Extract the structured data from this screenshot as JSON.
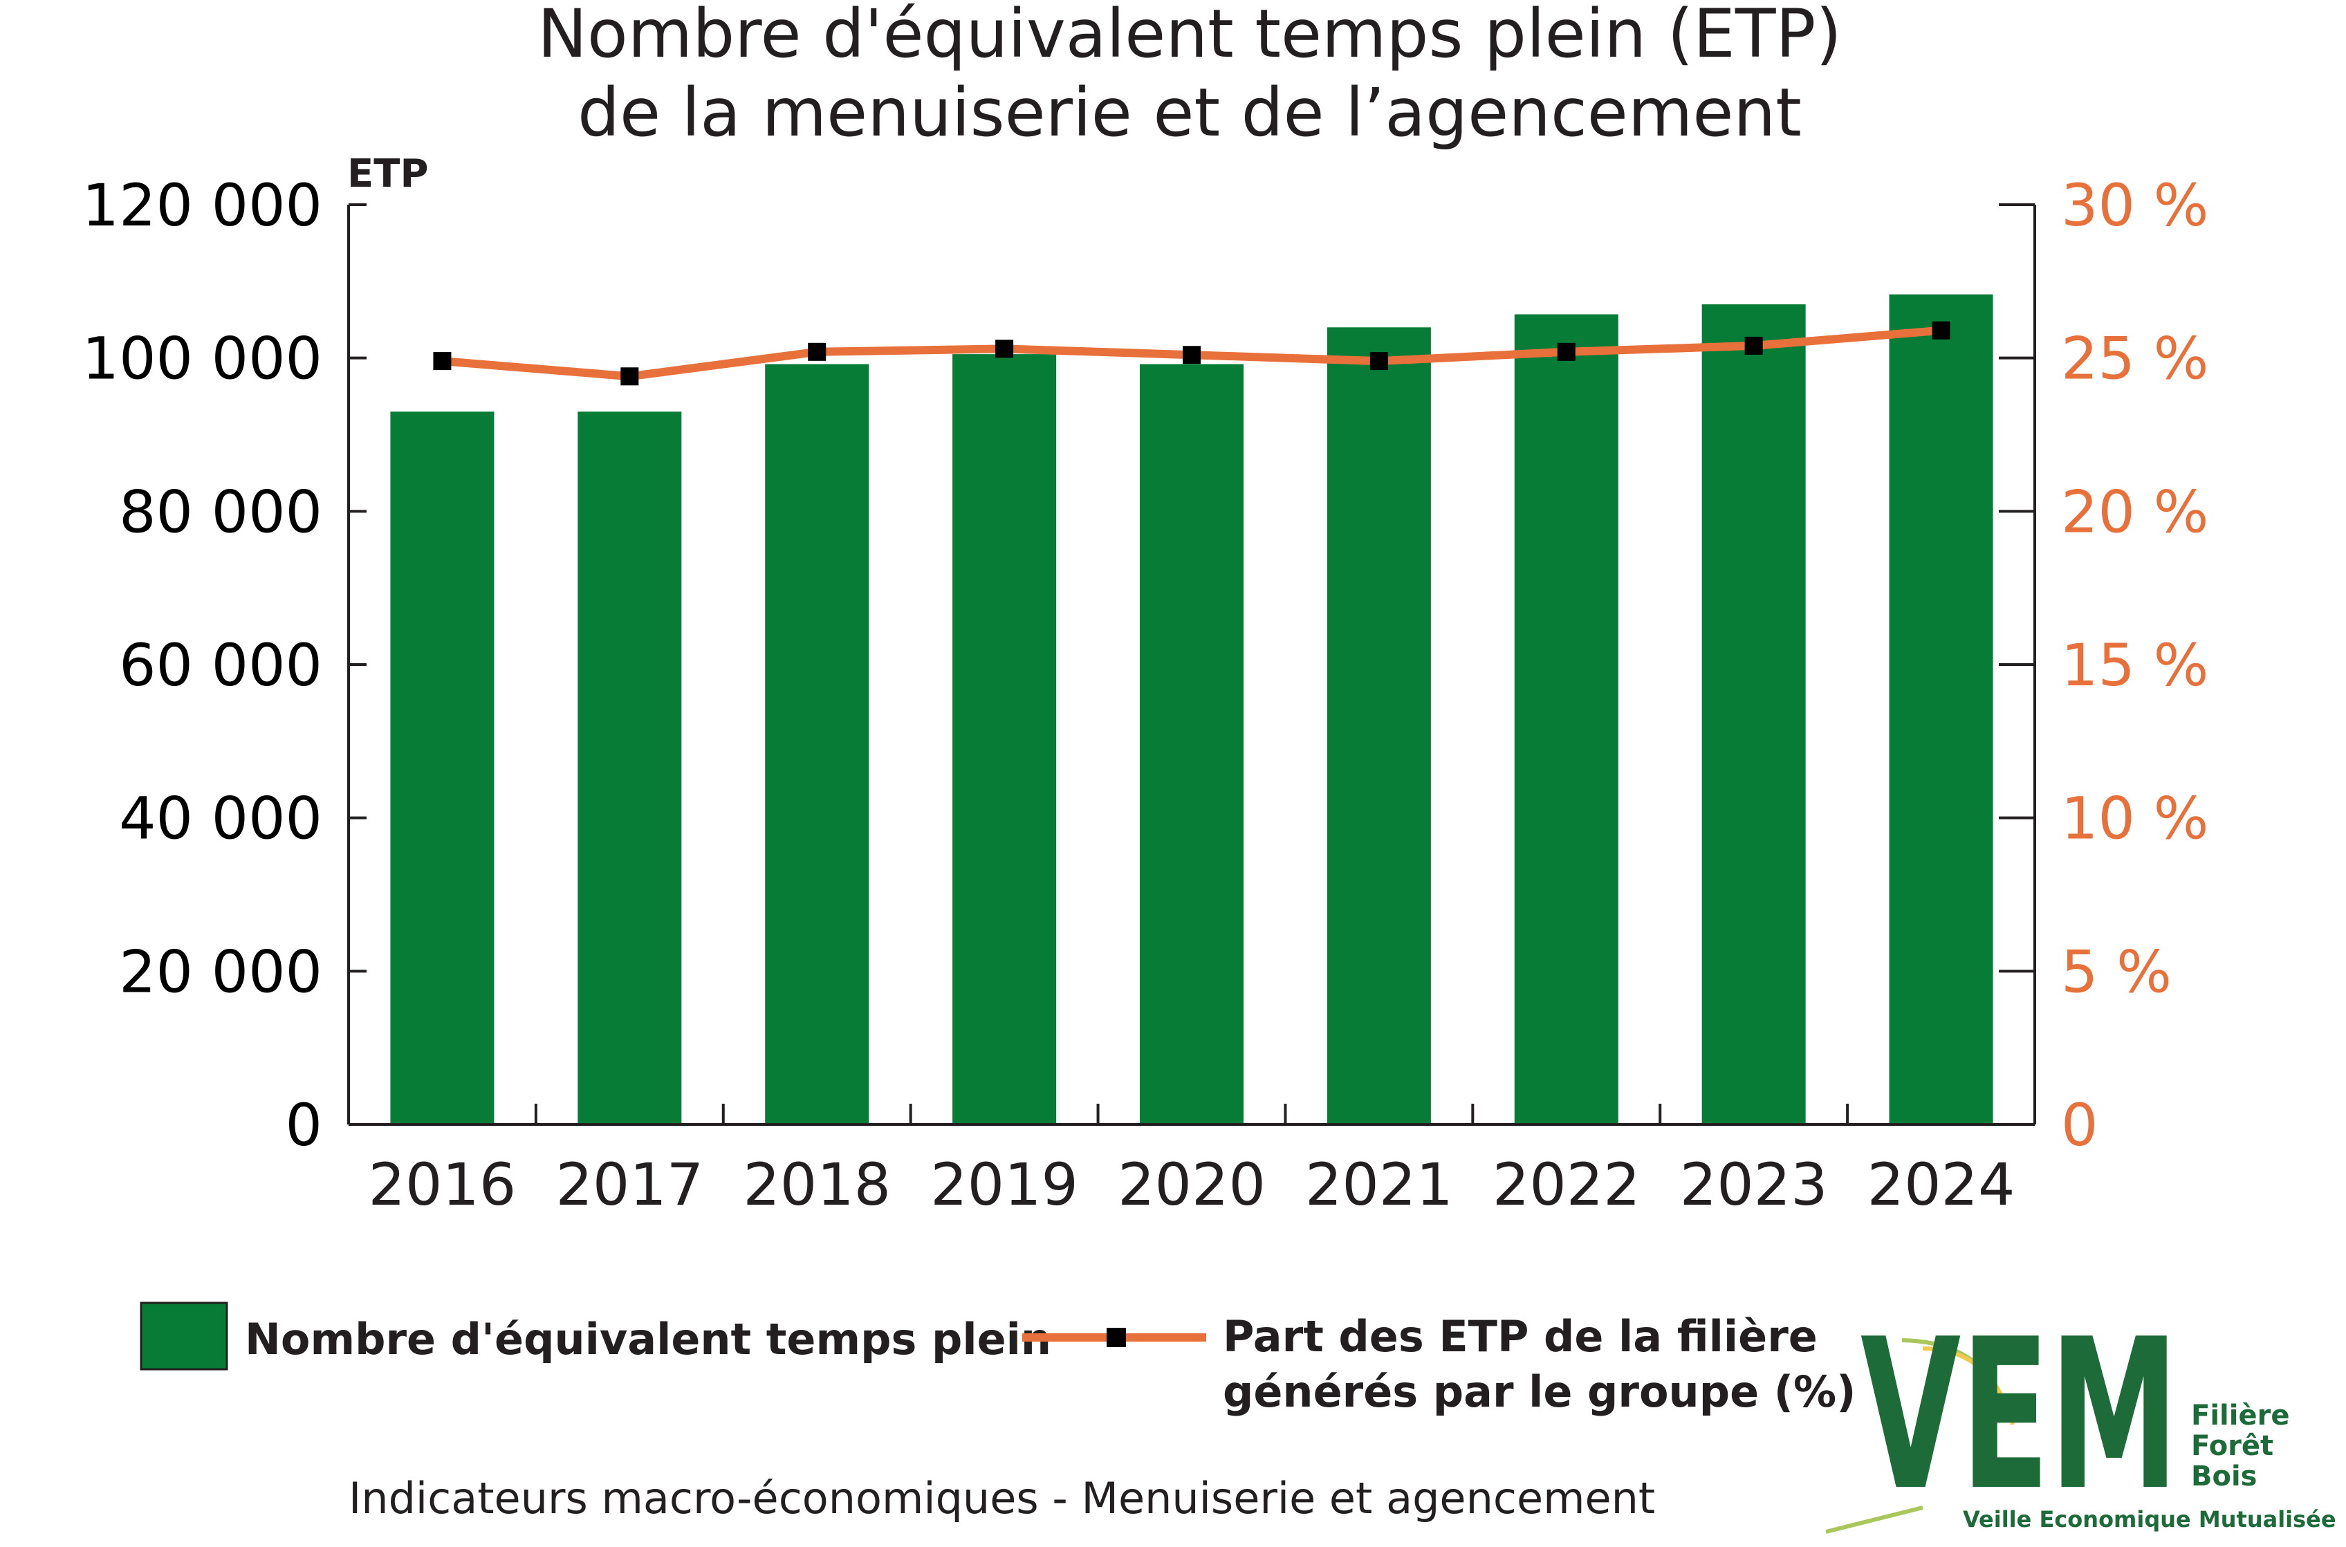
{
  "title_line1": "Nombre d'équivalent temps plein (ETP)",
  "title_line2": "de la menuiserie et de l’agencement",
  "source": "Indicateurs macro-économiques - Menuiserie et agencement",
  "colors": {
    "bar": "#067c36",
    "line": "#e8703a",
    "marker": "#000000",
    "axis": "#231f20"
  },
  "logo": {
    "mark": "VEM",
    "side_line1": "Filière",
    "side_line2": "Forêt",
    "side_line3": "Bois",
    "bottom": "Veille Economique Mutualisée"
  },
  "chart_data": {
    "type": "bar",
    "categories": [
      "2016",
      "2017",
      "2018",
      "2019",
      "2020",
      "2021",
      "2022",
      "2023",
      "2024"
    ],
    "y_unit_label": "ETP",
    "ylim": [
      0,
      120000
    ],
    "y_ticks": [
      0,
      20000,
      40000,
      60000,
      80000,
      100000,
      120000
    ],
    "y_tick_labels": [
      "0",
      "20 000",
      "40 000",
      "60 000",
      "80 000",
      "100 000",
      "120 000"
    ],
    "y2lim": [
      0,
      30
    ],
    "y2_ticks": [
      0,
      5,
      10,
      15,
      20,
      25,
      30
    ],
    "y2_tick_labels": [
      "0",
      "5 %",
      "10 %",
      "15 %",
      "20 %",
      "25 %",
      "30 %"
    ],
    "grid": false,
    "legend_position": "bottom",
    "series": [
      {
        "name": "Nombre d'équivalent temps plein",
        "type": "bar",
        "axis": "left",
        "values": [
          93000,
          93000,
          99200,
          100500,
          99200,
          104000,
          105700,
          107000,
          108300
        ]
      },
      {
        "name": "Part des ETP de la filière générés par le groupe (%)",
        "name_line1": "Part des ETP de la filière",
        "name_line2": "générés par le groupe (%)",
        "type": "line",
        "axis": "right",
        "values": [
          24.9,
          24.4,
          25.2,
          25.3,
          25.1,
          24.9,
          25.2,
          25.4,
          25.9
        ]
      }
    ]
  }
}
